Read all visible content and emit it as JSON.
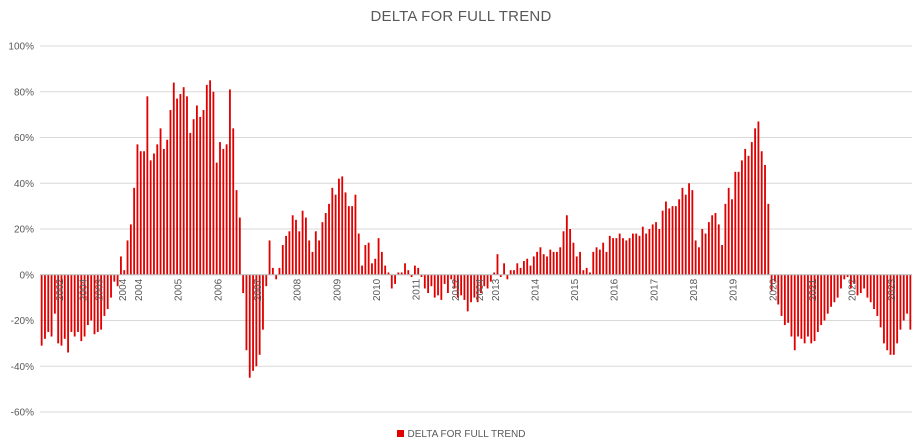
{
  "chart_data": {
    "type": "bar",
    "title": "DELTA FOR FULL TREND",
    "legend": "DELTA FOR FULL TREND",
    "legend_position": "bottom",
    "color": "#e00000",
    "ylim": [
      -60,
      100
    ],
    "yticks": [
      -60,
      -40,
      -20,
      0,
      20,
      40,
      60,
      80,
      100
    ],
    "ytick_labels": [
      "-60%",
      "-40%",
      "-20%",
      "0%",
      "20%",
      "40%",
      "60%",
      "80%",
      "100%"
    ],
    "grid": true,
    "x_start": 2002.0,
    "x_step": 0.083333,
    "xticks": [
      2002,
      2003,
      2004,
      2005,
      2006,
      2007,
      2008,
      2009,
      2010,
      2011,
      2012,
      2013,
      2014,
      2015,
      2016,
      2017,
      2018,
      2019,
      2020,
      2021,
      2022,
      2023,
      2024
    ],
    "extra_xtick_labels": [
      {
        "label": "2004",
        "x": 2003.1
      },
      {
        "label": "2004",
        "x": 2004.1
      },
      {
        "label": "2004",
        "x": 2013.1
      }
    ],
    "values": [
      -31,
      -28,
      -25,
      -27,
      -17,
      -30,
      -31,
      -28,
      -34,
      -25,
      -27,
      -25,
      -29,
      -27,
      -22,
      -20,
      -26,
      -25,
      -24,
      -18,
      -15,
      -10,
      -3,
      -5,
      8,
      2,
      15,
      22,
      38,
      57,
      54,
      54,
      78,
      50,
      53,
      57,
      64,
      55,
      59,
      72,
      84,
      77,
      79,
      82,
      78,
      62,
      68,
      74,
      69,
      72,
      83,
      85,
      80,
      49,
      58,
      55,
      57,
      81,
      64,
      37,
      25,
      -8,
      -33,
      -45,
      -42,
      -40,
      -35,
      -24,
      -5,
      15,
      3,
      -2,
      3,
      13,
      17,
      19,
      26,
      24,
      19,
      28,
      25,
      15,
      10,
      19,
      15,
      23,
      27,
      31,
      38,
      35,
      42,
      43,
      36,
      30,
      30,
      35,
      18,
      4,
      13,
      14,
      5,
      7,
      16,
      10,
      4,
      1,
      -6,
      -4,
      1,
      1,
      5,
      2,
      -1,
      4,
      3,
      -1,
      -6,
      -8,
      -5,
      -10,
      -9,
      -11,
      -4,
      -8,
      -2,
      -6,
      -10,
      -9,
      -11,
      -16,
      -12,
      -10,
      -12,
      -8,
      -5,
      -6,
      -3,
      1,
      9,
      -1,
      5,
      -2,
      2,
      2,
      5,
      3,
      6,
      7,
      4,
      8,
      10,
      12,
      9,
      8,
      11,
      10,
      10,
      12,
      19,
      26,
      20,
      14,
      8,
      10,
      2,
      3,
      1,
      10,
      12,
      11,
      14,
      10,
      17,
      16,
      16,
      18,
      16,
      15,
      16,
      18,
      18,
      17,
      21,
      18,
      20,
      22,
      23,
      20,
      28,
      32,
      29,
      30,
      30,
      33,
      38,
      35,
      40,
      37,
      15,
      12,
      20,
      18,
      23,
      26,
      27,
      22,
      13,
      31,
      38,
      33,
      45,
      45,
      50,
      55,
      52,
      58,
      64,
      67,
      54,
      48,
      31,
      -7,
      -3,
      -13,
      -18,
      -22,
      -21,
      -27,
      -33,
      -27,
      -28,
      -30,
      -27,
      -30,
      -29,
      -25,
      -22,
      -20,
      -17,
      -14,
      -12,
      -10,
      -6,
      -2,
      -1,
      -6,
      -4,
      -9,
      -8,
      -6,
      -10,
      -12,
      -15,
      -18,
      -23,
      -30,
      -33,
      -35,
      -35,
      -30,
      -24,
      -20,
      -17,
      -24
    ]
  }
}
